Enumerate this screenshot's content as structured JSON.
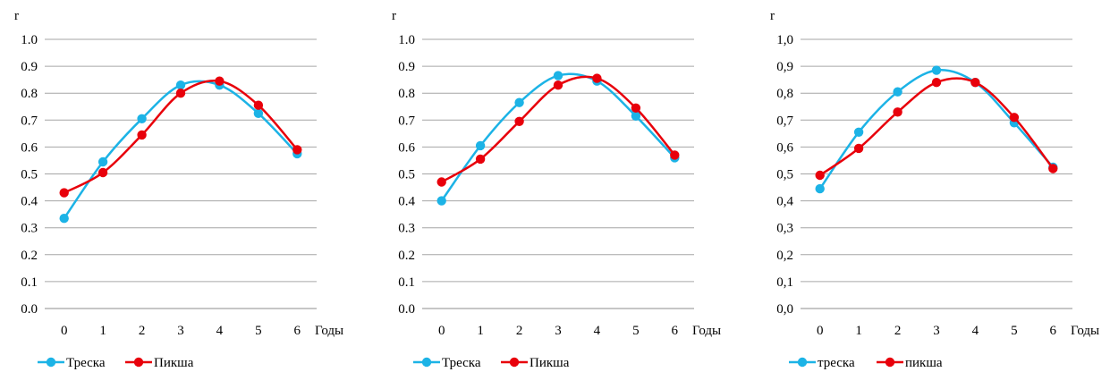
{
  "chart_data": [
    {
      "type": "line",
      "ylabel": "r",
      "xlabel": "Годы",
      "categories": [
        "0",
        "1",
        "2",
        "3",
        "4",
        "5",
        "6"
      ],
      "x_tick_labels": [
        "0",
        "1",
        "2",
        "3",
        "4",
        "5",
        "6"
      ],
      "ylim": [
        0,
        1
      ],
      "y_tick_labels": [
        "0.0",
        "0.1",
        "0.2",
        "0.3",
        "0.4",
        "0.5",
        "0.6",
        "0.7",
        "0.8",
        "0.9",
        "1.0"
      ],
      "grid": "horizontal",
      "legend": "bottom",
      "series": [
        {
          "name": "Треска",
          "color": "#1CB3E6",
          "values": [
            0.335,
            0.545,
            0.705,
            0.83,
            0.83,
            0.725,
            0.575
          ]
        },
        {
          "name": "Пикша",
          "color": "#E8000B",
          "values": [
            0.43,
            0.505,
            0.645,
            0.8,
            0.845,
            0.755,
            0.59
          ]
        }
      ]
    },
    {
      "type": "line",
      "ylabel": "r",
      "xlabel": "Годы",
      "categories": [
        "0",
        "1",
        "2",
        "3",
        "4",
        "5",
        "6"
      ],
      "x_tick_labels": [
        "0",
        "1",
        "2",
        "3",
        "4",
        "5",
        "6"
      ],
      "ylim": [
        0,
        1
      ],
      "y_tick_labels": [
        "0.0",
        "0.1",
        "0.2",
        "0.3",
        "0.4",
        "0.5",
        "0.6",
        "0.7",
        "0.8",
        "0.9",
        "1.0"
      ],
      "grid": "horizontal",
      "legend": "bottom",
      "series": [
        {
          "name": "Треска",
          "color": "#1CB3E6",
          "values": [
            0.4,
            0.605,
            0.765,
            0.865,
            0.845,
            0.715,
            0.56
          ]
        },
        {
          "name": "Пикша",
          "color": "#E8000B",
          "values": [
            0.47,
            0.555,
            0.695,
            0.83,
            0.855,
            0.745,
            0.57
          ]
        }
      ]
    },
    {
      "type": "line",
      "ylabel": "r",
      "xlabel": "Годы",
      "categories": [
        "0",
        "1",
        "2",
        "3",
        "4",
        "5",
        "6"
      ],
      "x_tick_labels": [
        "0",
        "1",
        "2",
        "3",
        "4",
        "5",
        "6"
      ],
      "ylim": [
        0,
        1
      ],
      "y_tick_labels": [
        "0,0",
        "0,1",
        "0,2",
        "0,3",
        "0,4",
        "0,5",
        "0,6",
        "0,7",
        "0,8",
        "0,9",
        "1,0"
      ],
      "grid": "horizontal",
      "legend": "bottom",
      "series": [
        {
          "name": "треска",
          "color": "#1CB3E6",
          "values": [
            0.445,
            0.655,
            0.805,
            0.885,
            0.84,
            0.69,
            0.525
          ]
        },
        {
          "name": "пикша",
          "color": "#E8000B",
          "values": [
            0.495,
            0.595,
            0.73,
            0.84,
            0.84,
            0.71,
            0.52
          ]
        }
      ]
    }
  ]
}
